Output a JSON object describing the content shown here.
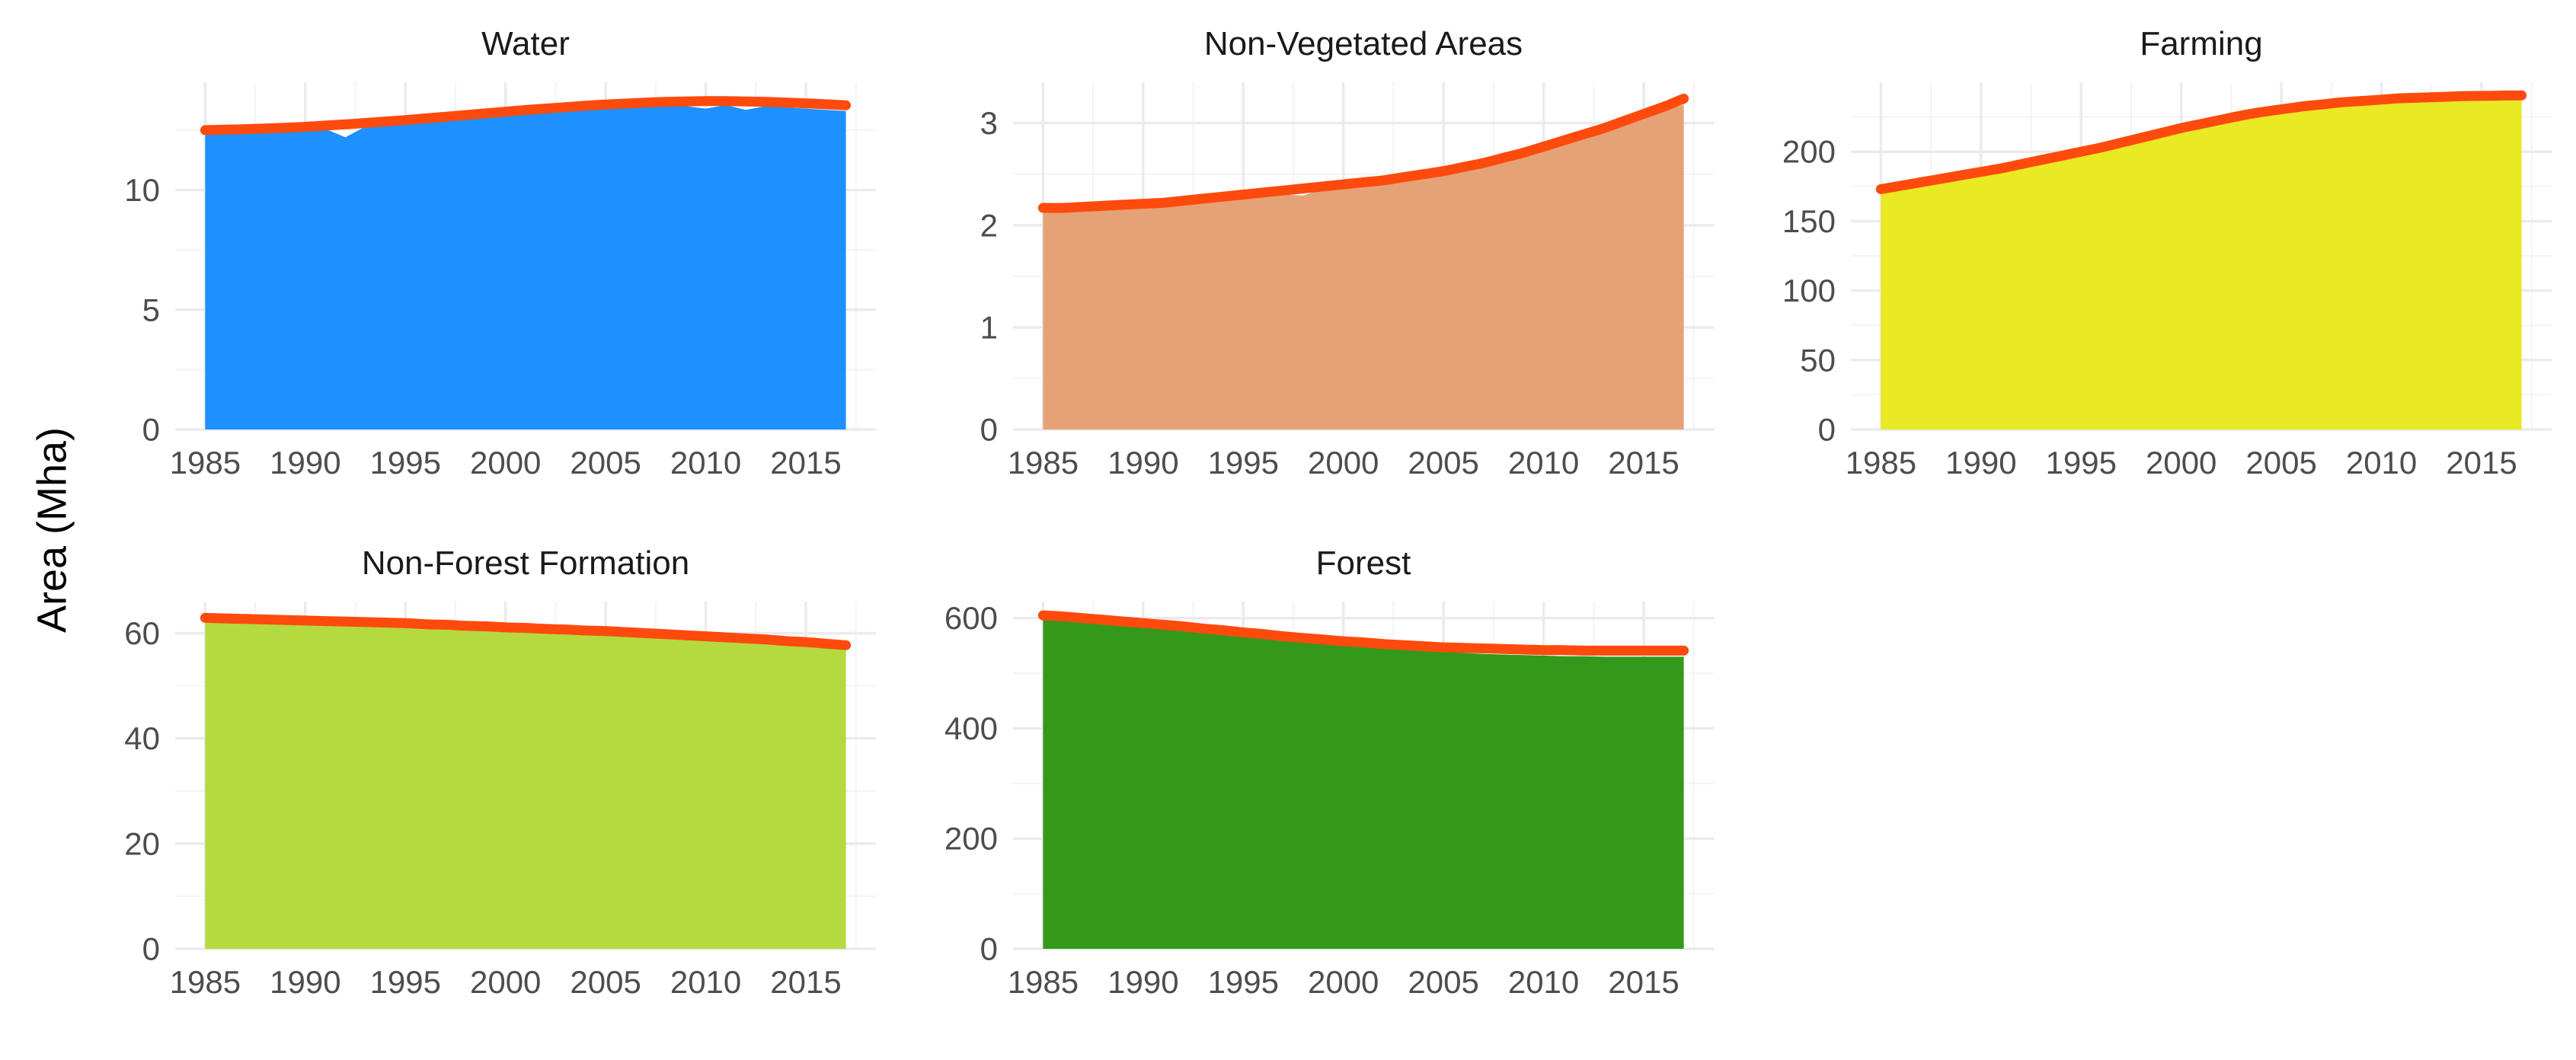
{
  "chart_data": {
    "type": "area",
    "layout": "facet-grid 2 rows x 3 columns",
    "ylabel": "Area (Mha)",
    "xlabel": "",
    "colors": {
      "trend_line": "#ff4a0d",
      "water": "#1e90ff",
      "non_vegetated": "#e5a277",
      "farming": "#e9e924",
      "non_forest": "#b4da3f",
      "forest": "#33991a"
    },
    "panels": [
      {
        "title": "Water",
        "fill": "#1e90ff",
        "x": [
          1985,
          1986,
          1987,
          1988,
          1989,
          1990,
          1991,
          1992,
          1993,
          1994,
          1995,
          1996,
          1997,
          1998,
          1999,
          2000,
          2001,
          2002,
          2003,
          2004,
          2005,
          2006,
          2007,
          2008,
          2009,
          2010,
          2011,
          2012,
          2013,
          2014,
          2015,
          2016,
          2017
        ],
        "values": [
          12.3,
          12.35,
          12.35,
          12.4,
          12.45,
          12.5,
          12.55,
          12.2,
          12.65,
          12.7,
          12.75,
          12.85,
          12.9,
          12.95,
          13.05,
          13.1,
          13.15,
          13.25,
          13.3,
          13.35,
          13.4,
          13.45,
          13.45,
          13.5,
          13.5,
          13.4,
          13.55,
          13.35,
          13.5,
          13.45,
          13.4,
          13.35,
          13.3
        ],
        "trend": [
          12.5,
          12.52,
          12.54,
          12.57,
          12.6,
          12.64,
          12.69,
          12.74,
          12.8,
          12.86,
          12.92,
          12.99,
          13.06,
          13.13,
          13.2,
          13.27,
          13.34,
          13.4,
          13.46,
          13.52,
          13.57,
          13.61,
          13.65,
          13.68,
          13.7,
          13.71,
          13.71,
          13.7,
          13.68,
          13.65,
          13.62,
          13.58,
          13.54
        ],
        "xticks": [
          1985,
          1990,
          1995,
          2000,
          2005,
          2010,
          2015
        ],
        "xtick_labels": [
          "1985",
          "1990",
          "1995",
          "2000",
          "2005",
          "2010",
          "2015"
        ],
        "ylim": [
          0,
          14.5
        ],
        "yticks": [
          0,
          5,
          10
        ],
        "ytick_labels": [
          "0",
          "5",
          "10"
        ],
        "yminor": [
          2.5,
          7.5,
          12.5
        ]
      },
      {
        "title": "Non-Vegetated Areas",
        "fill": "#e5a277",
        "x": [
          1985,
          1986,
          1987,
          1988,
          1989,
          1990,
          1991,
          1992,
          1993,
          1994,
          1995,
          1996,
          1997,
          1998,
          1999,
          2000,
          2001,
          2002,
          2003,
          2004,
          2005,
          2006,
          2007,
          2008,
          2009,
          2010,
          2011,
          2012,
          2013,
          2014,
          2015,
          2016,
          2017
        ],
        "values": [
          2.12,
          2.2,
          2.13,
          2.15,
          2.16,
          2.18,
          2.19,
          2.22,
          2.25,
          2.33,
          2.26,
          2.28,
          2.3,
          2.29,
          2.36,
          2.43,
          2.38,
          2.42,
          2.45,
          2.48,
          2.5,
          2.55,
          2.6,
          2.65,
          2.7,
          2.76,
          2.82,
          2.88,
          2.95,
          3.0,
          3.06,
          3.12,
          3.18
        ],
        "trend": [
          2.17,
          2.17,
          2.18,
          2.19,
          2.2,
          2.21,
          2.22,
          2.24,
          2.26,
          2.28,
          2.3,
          2.32,
          2.34,
          2.36,
          2.38,
          2.4,
          2.42,
          2.44,
          2.47,
          2.5,
          2.53,
          2.57,
          2.61,
          2.66,
          2.71,
          2.77,
          2.83,
          2.89,
          2.95,
          3.02,
          3.09,
          3.16,
          3.24
        ],
        "xticks": [
          1985,
          1990,
          1995,
          2000,
          2005,
          2010,
          2015
        ],
        "xtick_labels": [
          "1985",
          "1990",
          "1995",
          "2000",
          "2005",
          "2010",
          "2015"
        ],
        "ylim": [
          0,
          3.4
        ],
        "yticks": [
          0,
          1,
          2,
          3
        ],
        "ytick_labels": [
          "0",
          "1",
          "2",
          "3"
        ],
        "yminor": [
          0.5,
          1.5,
          2.5
        ]
      },
      {
        "title": "Farming",
        "fill": "#e9e924",
        "x": [
          1985,
          1986,
          1987,
          1988,
          1989,
          1990,
          1991,
          1992,
          1993,
          1994,
          1995,
          1996,
          1997,
          1998,
          1999,
          2000,
          2001,
          2002,
          2003,
          2004,
          2005,
          2006,
          2007,
          2008,
          2009,
          2010,
          2011,
          2012,
          2013,
          2014,
          2015,
          2016,
          2017
        ],
        "values": [
          170,
          172,
          175,
          178,
          181,
          184,
          187,
          190,
          193,
          196,
          199,
          203,
          206,
          210,
          214,
          217,
          220,
          223,
          226,
          228,
          230,
          232,
          233,
          234,
          235,
          236,
          237,
          237.5,
          238,
          238.5,
          239,
          239,
          239
        ],
        "trend": [
          173,
          175.5,
          178,
          180.5,
          183,
          185.5,
          188,
          191,
          194,
          197,
          200,
          203,
          206.5,
          210,
          213.5,
          217,
          220,
          223,
          226,
          228.5,
          230.5,
          232.5,
          234,
          235.5,
          236.5,
          237.5,
          238.5,
          239,
          239.5,
          240,
          240.2,
          240.4,
          240.5
        ],
        "xticks": [
          1985,
          1990,
          1995,
          2000,
          2005,
          2010,
          2015
        ],
        "xtick_labels": [
          "1985",
          "1990",
          "1995",
          "2000",
          "2005",
          "2010",
          "2015"
        ],
        "ylim": [
          0,
          250
        ],
        "yticks": [
          0,
          50,
          100,
          150,
          200
        ],
        "ytick_labels": [
          "0",
          "50",
          "100",
          "150",
          "200"
        ],
        "yminor": [
          25,
          75,
          125,
          175,
          225
        ]
      },
      {
        "title": "Non-Forest Formation",
        "fill": "#b4da3f",
        "x": [
          1985,
          1986,
          1987,
          1988,
          1989,
          1990,
          1991,
          1992,
          1993,
          1994,
          1995,
          1996,
          1997,
          1998,
          1999,
          2000,
          2001,
          2002,
          2003,
          2004,
          2005,
          2006,
          2007,
          2008,
          2009,
          2010,
          2011,
          2012,
          2013,
          2014,
          2015,
          2016,
          2017
        ],
        "values": [
          62.5,
          62.4,
          62.3,
          62.2,
          62.1,
          62.0,
          61.9,
          61.8,
          61.7,
          61.6,
          61.5,
          61.4,
          61.2,
          61.0,
          60.9,
          60.7,
          60.6,
          60.5,
          60.4,
          60.3,
          60.2,
          60.0,
          59.9,
          59.7,
          59.5,
          59.3,
          59.1,
          58.9,
          58.6,
          58.3,
          58.0,
          57.6,
          57.2
        ],
        "trend": [
          62.9,
          62.8,
          62.7,
          62.6,
          62.5,
          62.4,
          62.3,
          62.2,
          62.1,
          62.0,
          61.9,
          61.7,
          61.6,
          61.4,
          61.3,
          61.1,
          61.0,
          60.8,
          60.7,
          60.5,
          60.4,
          60.2,
          60.0,
          59.8,
          59.6,
          59.4,
          59.2,
          59.0,
          58.8,
          58.5,
          58.3,
          58.0,
          57.7
        ],
        "xticks": [
          1985,
          1990,
          1995,
          2000,
          2005,
          2010,
          2015
        ],
        "xtick_labels": [
          "1985",
          "1990",
          "1995",
          "2000",
          "2005",
          "2010",
          "2015"
        ],
        "ylim": [
          0,
          66
        ],
        "yticks": [
          0,
          20,
          40,
          60
        ],
        "ytick_labels": [
          "0",
          "20",
          "40",
          "60"
        ],
        "yminor": [
          10,
          30,
          50
        ]
      },
      {
        "title": "Forest",
        "fill": "#33991a",
        "x": [
          1985,
          1986,
          1987,
          1988,
          1989,
          1990,
          1991,
          1992,
          1993,
          1994,
          1995,
          1996,
          1997,
          1998,
          1999,
          2000,
          2001,
          2002,
          2003,
          2004,
          2005,
          2006,
          2007,
          2008,
          2009,
          2010,
          2011,
          2012,
          2013,
          2014,
          2015,
          2016,
          2017
        ],
        "values": [
          598,
          595,
          592,
          589,
          586,
          583,
          580,
          577,
          574,
          571,
          568,
          565,
          562,
          558,
          554,
          551,
          548,
          546,
          543,
          541,
          539,
          537,
          535,
          534,
          533,
          532,
          531,
          531,
          530,
          530,
          530,
          530,
          530
        ],
        "trend": [
          605,
          603,
          600,
          597,
          594,
          591,
          588,
          585,
          581,
          578,
          574,
          571,
          567,
          564,
          561,
          558,
          556,
          553,
          551,
          549,
          547,
          546,
          545,
          544,
          543,
          542,
          542,
          541,
          541,
          541,
          541,
          541,
          541
        ],
        "xticks": [
          1985,
          1990,
          1995,
          2000,
          2005,
          2010,
          2015
        ],
        "xtick_labels": [
          "1985",
          "1990",
          "1995",
          "2000",
          "2005",
          "2010",
          "2015"
        ],
        "ylim": [
          0,
          630
        ],
        "yticks": [
          0,
          200,
          400,
          600
        ],
        "ytick_labels": [
          "0",
          "200",
          "400",
          "600"
        ],
        "yminor": [
          100,
          300,
          500
        ]
      }
    ]
  }
}
